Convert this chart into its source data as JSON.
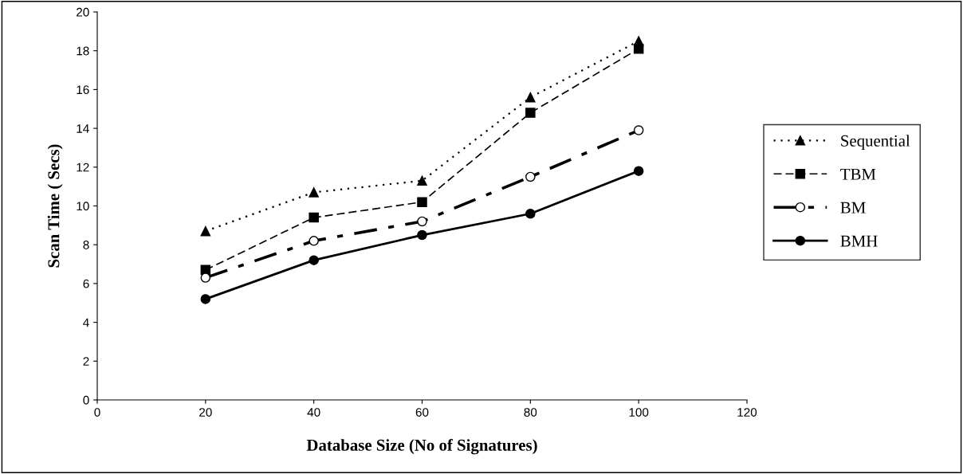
{
  "chart_data": {
    "type": "line",
    "xlabel": "Database Size (No of Signatures)",
    "ylabel": "Scan Time ( Secs)",
    "x": [
      20,
      40,
      60,
      80,
      100
    ],
    "xlim": [
      0,
      120
    ],
    "xticks": [
      0,
      20,
      40,
      60,
      80,
      100,
      120
    ],
    "ylim": [
      0,
      20
    ],
    "yticks": [
      0,
      2,
      4,
      6,
      8,
      10,
      12,
      14,
      16,
      18,
      20
    ],
    "grid": false,
    "legend": "right",
    "series": [
      {
        "name": "Sequential",
        "color": "#000000",
        "marker": "triangle",
        "line_style": "dotted",
        "values": [
          8.7,
          10.7,
          11.3,
          15.6,
          18.5
        ]
      },
      {
        "name": "TBM",
        "color": "#000000",
        "marker": "square",
        "line_style": "dashed",
        "values": [
          6.7,
          9.4,
          10.2,
          14.8,
          18.1
        ]
      },
      {
        "name": "BM",
        "color": "#000000",
        "marker": "circle_open",
        "line_style": "dashdot",
        "values": [
          6.3,
          8.2,
          9.2,
          11.5,
          13.9
        ]
      },
      {
        "name": "BMH",
        "color": "#000000",
        "marker": "circle",
        "line_style": "solid",
        "values": [
          5.2,
          7.2,
          8.5,
          9.6,
          11.8
        ]
      }
    ]
  }
}
